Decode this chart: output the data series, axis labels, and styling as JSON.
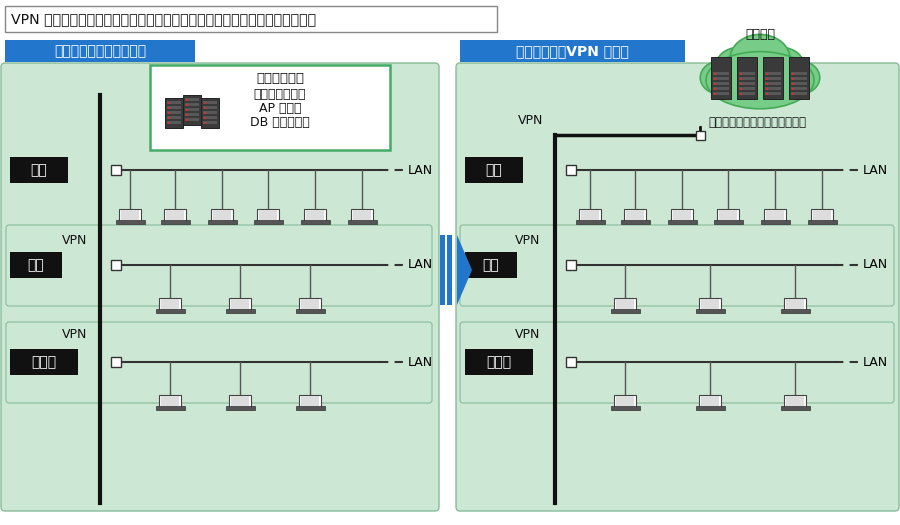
{
  "title_text": "VPN 接続を選択することで、社内運用と同等のセキュリティを実現します。",
  "left_section_title": "自社運用の構成イメージ",
  "right_section_title": "クラウド化＆VPN 接続図",
  "bg_color": "#ffffff",
  "panel_bg": "#cce8d4",
  "panel_border": "#88bb99",
  "title_box_color": "#2277cc",
  "title_text_color": "#ffffff",
  "server_box_border": "#44aa66",
  "server_box_bg": "#ffffff",
  "location_box_bg": "#111111",
  "location_text_color": "#ffffff",
  "vpn_line_color": "#111111",
  "cloud_fill": "#77cc88",
  "cloud_border": "#44aa55",
  "cloud_text": "クラウド",
  "cloud_annotation": "業務に必要なサーバー群を調達",
  "arrow_color": "#2277cc",
  "server_text": [
    "本社サーバ群",
    "ファイルサーバ",
    "AP サーバ",
    "DB サーバなど"
  ]
}
